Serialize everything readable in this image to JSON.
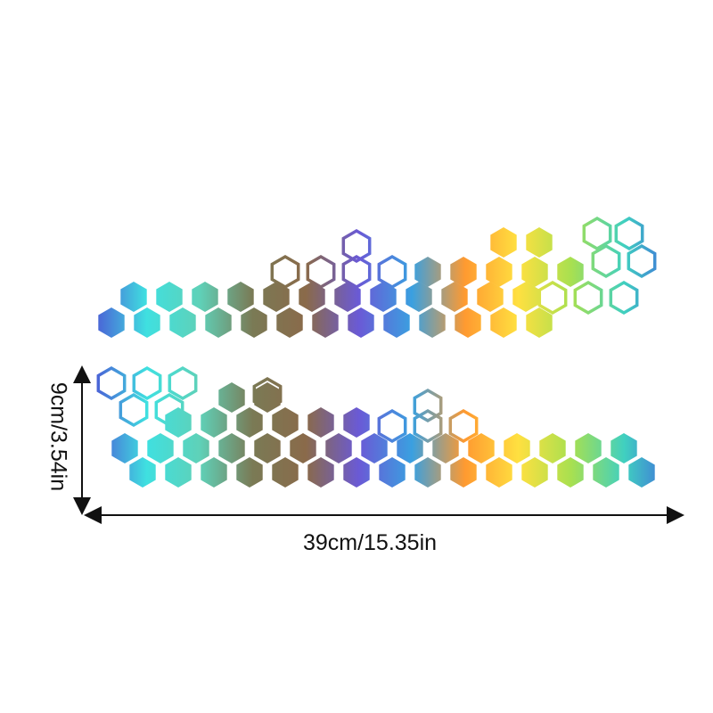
{
  "dimensions": {
    "height_label": "9cm/3.54in",
    "width_label": "39cm/15.35in"
  },
  "colors": {
    "gradient_stops": [
      "#4b5bd6",
      "#3fe0e0",
      "#5fd1b8",
      "#7a7a55",
      "#8a6a4a",
      "#6a5ad6",
      "#3aa0e0",
      "#ff9a30",
      "#ffe040",
      "#a8e050",
      "#40d0c0",
      "#4060e0"
    ],
    "arrow": "#111111"
  }
}
